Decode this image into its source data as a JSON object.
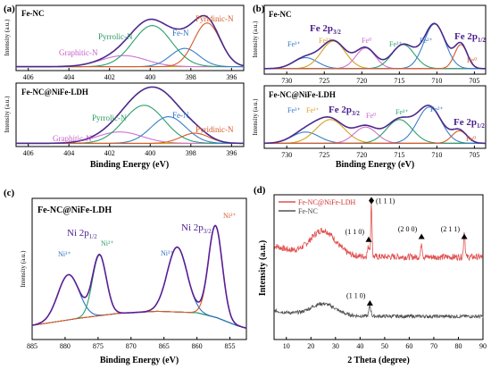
{
  "figure": {
    "panel_a": {
      "tag": "(a)",
      "xlabel": "Binding Energy (eV)",
      "ylabel": "Intensity (a.u.)",
      "top": {
        "sample": "Fe-NC",
        "peaks": [
          "Graphitic-N",
          "Pyrrolic-N",
          "Fe-N",
          "Pyridinic-N"
        ]
      },
      "bottom": {
        "sample": "Fe-NC@NiFe-LDH",
        "peaks": [
          "Graphitic-N",
          "Pyrrolic-N",
          "Fe-N",
          "Pyridinic-N"
        ]
      }
    },
    "panel_b": {
      "tag": "(b)",
      "xlabel": "Binding Energy (eV)",
      "ylabel": "Intensity (a.u.)",
      "top": {
        "sample": "Fe-NC",
        "main_labels": [
          "Fe 2p3/2",
          "Fe 2p1/2"
        ],
        "peak_labels": [
          "Fe³⁺",
          "Fe²⁺",
          "Fe⁰",
          "Fe³⁺",
          "Fe²⁺",
          "Fe⁰"
        ]
      },
      "bottom": {
        "sample": "Fe-NC@NiFe-LDH",
        "main_labels": [
          "Fe 2p3/2",
          "Fe 2p1/2"
        ],
        "peak_labels": [
          "Fe³⁺",
          "Fe²⁺",
          "Fe⁰",
          "Fe³⁺",
          "Fe²⁺",
          "Fe⁰"
        ]
      }
    },
    "panel_c": {
      "tag": "(c)",
      "sample": "Fe-NC@NiFe-LDH",
      "xlabel": "Binding Energy (eV)",
      "ylabel": "Intensity (a.u.)",
      "main_labels": [
        "Ni 2p1/2",
        "Ni 2p3/2"
      ],
      "peak_labels": [
        "Ni³⁺",
        "Ni²⁺",
        "Ni³⁺",
        "Ni²⁺"
      ]
    },
    "panel_d": {
      "tag": "(d)",
      "xlabel": "2 Theta (degree)",
      "ylabel": "Intensity (a.u.)",
      "legend": [
        "Fe-NC@NiFe-LDH",
        "Fe-NC"
      ],
      "annotations": [
        "(1 1 1)",
        "(1 1 0)",
        "(2 0 0)",
        "(2 1 1)",
        "(1 1 0)"
      ]
    }
  },
  "chart_data": [
    {
      "type": "line",
      "panel": "(a) top",
      "title": "Fe-NC",
      "xlabel": "Binding Energy (eV)",
      "ylabel": "Intensity (a.u.)",
      "xlim": [
        406.6,
        395.4
      ],
      "x_ticks": [
        406,
        404,
        402,
        400,
        398,
        396
      ],
      "baseline": 0.06,
      "peaks": [
        {
          "name": "Graphitic-N",
          "center": 401.3,
          "amp": 0.17,
          "sigma": 1.1,
          "color": "#d070d0"
        },
        {
          "name": "Pyrrolic-N",
          "center": 399.9,
          "amp": 0.63,
          "sigma": 0.95,
          "color": "#2aa06a"
        },
        {
          "name": "Fe-N",
          "center": 398.3,
          "amp": 0.28,
          "sigma": 0.7,
          "color": "#3a80c8"
        },
        {
          "name": "Pyridinic-N",
          "center": 397.2,
          "amp": 0.67,
          "sigma": 0.65,
          "color": "#d65a2a"
        }
      ],
      "envelope_color": "#4b2a8c"
    },
    {
      "type": "line",
      "panel": "(a) bottom",
      "title": "Fe-NC@NiFe-LDH",
      "xlabel": "Binding Energy (eV)",
      "ylabel": "Intensity (a.u.)",
      "xlim": [
        406.6,
        395.4
      ],
      "x_ticks": [
        406,
        404,
        402,
        400,
        398,
        396
      ],
      "baseline": 0.05,
      "peaks": [
        {
          "name": "Graphitic-N",
          "center": 401.5,
          "amp": 0.18,
          "sigma": 1.1,
          "color": "#d070d0"
        },
        {
          "name": "Pyrrolic-N",
          "center": 400.3,
          "amp": 0.6,
          "sigma": 1.0,
          "color": "#2aa06a"
        },
        {
          "name": "Fe-N",
          "center": 399.1,
          "amp": 0.42,
          "sigma": 0.85,
          "color": "#3a80c8"
        },
        {
          "name": "Pyridinic-N",
          "center": 397.8,
          "amp": 0.16,
          "sigma": 0.7,
          "color": "#d65a2a"
        }
      ],
      "envelope_color": "#4b2a8c"
    },
    {
      "type": "line",
      "panel": "(b) top",
      "title": "Fe-NC",
      "xlabel": "Binding Energy (eV)",
      "ylabel": "Intensity (a.u.)",
      "xlim": [
        733,
        703.5
      ],
      "x_ticks": [
        730,
        725,
        720,
        715,
        710,
        705
      ],
      "baseline": 0.08,
      "peaks": [
        {
          "name": "Fe³⁺",
          "center": 727.5,
          "amp": 0.16,
          "sigma": 1.6,
          "color": "#3a80c8"
        },
        {
          "name": "Fe²⁺",
          "center": 723.8,
          "amp": 0.4,
          "sigma": 1.6,
          "color": "#d6a020"
        },
        {
          "name": "Fe⁰",
          "center": 719.5,
          "amp": 0.3,
          "sigma": 1.3,
          "color": "#d070d0"
        },
        {
          "name": "Fe³⁺",
          "center": 714.5,
          "amp": 0.35,
          "sigma": 1.5,
          "color": "#2aa06a"
        },
        {
          "name": "Fe²⁺",
          "center": 710.3,
          "amp": 0.65,
          "sigma": 1.4,
          "color": "#3a80c8"
        },
        {
          "name": "Fe⁰",
          "center": 706.8,
          "amp": 0.35,
          "sigma": 0.85,
          "color": "#d65a2a"
        }
      ],
      "envelope_color": "#4b2a8c"
    },
    {
      "type": "line",
      "panel": "(b) bottom",
      "title": "Fe-NC@NiFe-LDH",
      "xlabel": "Binding Energy (eV)",
      "ylabel": "Intensity (a.u.)",
      "xlim": [
        733,
        703.5
      ],
      "x_ticks": [
        730,
        725,
        720,
        715,
        710,
        705
      ],
      "baseline": 0.08,
      "peaks": [
        {
          "name": "Fe³⁺",
          "center": 727.5,
          "amp": 0.18,
          "sigma": 1.8,
          "color": "#3a80c8"
        },
        {
          "name": "Fe²⁺",
          "center": 724.2,
          "amp": 0.38,
          "sigma": 1.9,
          "color": "#d6a020"
        },
        {
          "name": "Fe⁰",
          "center": 719.5,
          "amp": 0.26,
          "sigma": 1.5,
          "color": "#d070d0"
        },
        {
          "name": "Fe³⁺",
          "center": 715.0,
          "amp": 0.38,
          "sigma": 1.7,
          "color": "#2aa06a"
        },
        {
          "name": "Fe²⁺",
          "center": 711.0,
          "amp": 0.58,
          "sigma": 1.6,
          "color": "#3a80c8"
        },
        {
          "name": "Fe⁰",
          "center": 707.0,
          "amp": 0.2,
          "sigma": 1.0,
          "color": "#d65a2a"
        }
      ],
      "envelope_color": "#4b2a8c"
    },
    {
      "type": "line",
      "panel": "(c)",
      "title": "Fe-NC@NiFe-LDH",
      "xlabel": "Binding Energy (eV)",
      "ylabel": "Intensity (a.u.)",
      "xlim": [
        885,
        852.5
      ],
      "x_ticks": [
        885,
        880,
        875,
        870,
        865,
        860,
        855
      ],
      "background": [
        [
          885,
          0.1
        ],
        [
          878,
          0.15
        ],
        [
          872,
          0.185
        ],
        [
          866,
          0.2
        ],
        [
          860,
          0.19
        ],
        [
          857,
          0.155
        ],
        [
          854,
          0.1
        ],
        [
          852.5,
          0.08
        ]
      ],
      "peaks": [
        {
          "name": "Ni³⁺",
          "center": 879.5,
          "amp": 0.32,
          "sigma": 1.6,
          "color": "#2a70c0"
        },
        {
          "name": "Ni²⁺",
          "center": 874.8,
          "amp": 0.43,
          "sigma": 1.05,
          "color": "#2aa06a"
        },
        {
          "name": "Ni³⁺",
          "center": 863.0,
          "amp": 0.46,
          "sigma": 1.5,
          "color": "#2a70c0"
        },
        {
          "name": "Ni²⁺",
          "center": 857.2,
          "amp": 0.65,
          "sigma": 1.05,
          "color": "#d65a2a"
        }
      ],
      "envelope_color": "#5a1e96",
      "background_color": "#c8a800"
    },
    {
      "type": "line",
      "panel": "(d)",
      "xlabel": "2 Theta (degree)",
      "ylabel": "Intensity (a.u.)",
      "xlim": [
        5,
        90
      ],
      "x_ticks": [
        10,
        20,
        30,
        40,
        50,
        60,
        70,
        80,
        90
      ],
      "series": [
        {
          "name": "Fe-NC@NiFe-LDH",
          "color": "#e05050",
          "base": 0.57,
          "decay": 0.08,
          "humps": [
            [
              25,
              0.17,
              5
            ]
          ],
          "sharp": [
            [
              43.5,
              0.07,
              0.45
            ],
            [
              44.6,
              0.36,
              0.25
            ],
            [
              65.0,
              0.1,
              0.3
            ],
            [
              82.4,
              0.18,
              0.3
            ]
          ],
          "noise": 0.022
        },
        {
          "name": "Fe-NC",
          "color": "#505050",
          "base": 0.16,
          "decay": 0.04,
          "humps": [
            [
              25,
              0.08,
              5
            ]
          ],
          "sharp": [
            [
              44.0,
              0.07,
              0.4
            ]
          ],
          "noise": 0.012
        }
      ],
      "markers": [
        {
          "label": "(1 1 1)",
          "x": 44.6,
          "y": 0.96,
          "symbol": "diamond"
        },
        {
          "label": "(1 1 0)",
          "x": 43.5,
          "y": 0.69,
          "symbol": "triangle"
        },
        {
          "label": "(2 0 0)",
          "x": 65.0,
          "y": 0.71,
          "symbol": "triangle"
        },
        {
          "label": "(2 1 1)",
          "x": 82.4,
          "y": 0.71,
          "symbol": "triangle"
        },
        {
          "label": "(1 1 0)",
          "x": 44.0,
          "y": 0.25,
          "symbol": "triangle"
        }
      ]
    }
  ]
}
